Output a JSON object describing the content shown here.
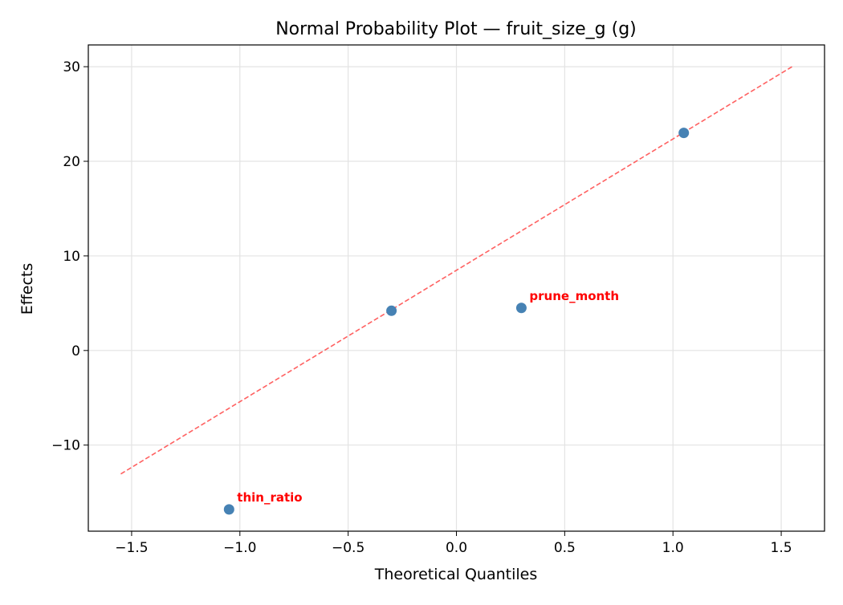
{
  "chart_data": {
    "type": "scatter",
    "title": "Normal Probability Plot — fruit_size_g (g)",
    "xlabel": "Theoretical Quantiles",
    "ylabel": "Effects",
    "xlim": [
      -1.7,
      1.7
    ],
    "ylim": [
      -19.1,
      32.3
    ],
    "xticks": [
      -1.5,
      -1.0,
      -0.5,
      0.0,
      0.5,
      1.0,
      1.5
    ],
    "xtick_labels": [
      "−1.5",
      "−1.0",
      "−0.5",
      "0.0",
      "0.5",
      "1.0",
      "1.5"
    ],
    "yticks": [
      -10,
      0,
      10,
      20,
      30
    ],
    "ytick_labels": [
      "−10",
      "0",
      "10",
      "20",
      "30"
    ],
    "grid": true,
    "points": [
      {
        "x": -1.05,
        "y": -16.8,
        "label": "thin_ratio"
      },
      {
        "x": -0.3,
        "y": 4.2,
        "label": ""
      },
      {
        "x": 0.3,
        "y": 4.5,
        "label": "prune_month"
      },
      {
        "x": 1.05,
        "y": 23.0,
        "label": ""
      }
    ],
    "reference_line": {
      "x": [
        -1.55,
        1.55
      ],
      "y": [
        -13.05,
        30.0
      ],
      "style": "dashed"
    },
    "colors": {
      "points": "#4682b4",
      "line": "#ff6161",
      "annotations": "#ff0000"
    }
  }
}
